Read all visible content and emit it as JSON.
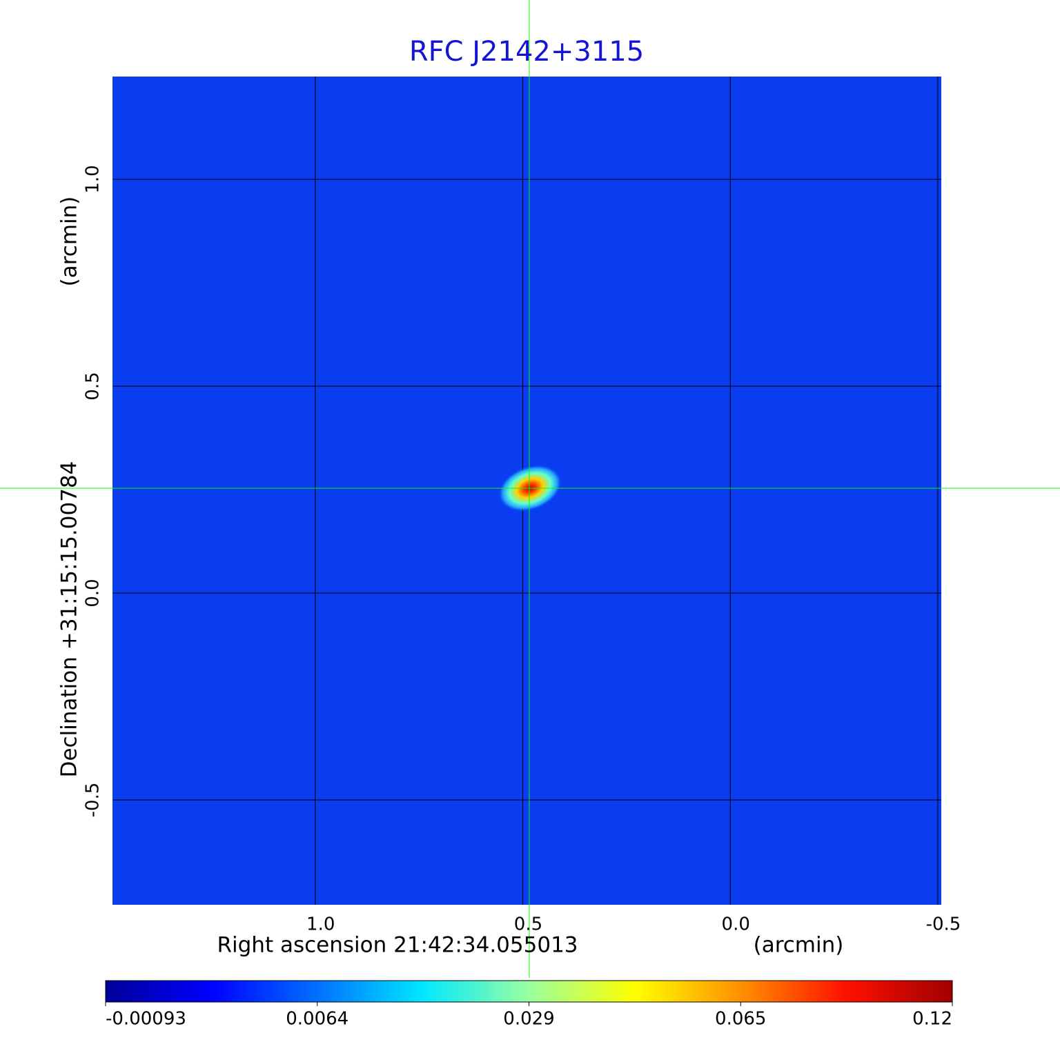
{
  "chart_data": {
    "type": "image",
    "title": "RFC J2142+3115",
    "xlabel": "Right ascension  21:42:34.055013",
    "xunit": "(arcmin)",
    "ylabel": "Declination  +31:15:15.00784",
    "yunit": "(arcmin)",
    "xlim": [
      1.49,
      -0.51
    ],
    "xticks": [
      {
        "value": 1,
        "label": "1.0"
      },
      0.5,
      {
        "value": 0,
        "label": "0.0"
      },
      -0.5
    ],
    "ylim": [
      -0.755,
      1.25
    ],
    "yticks": [
      {
        "value": 1,
        "label": "1.0"
      },
      0.5,
      {
        "value": 0,
        "label": "0.0"
      },
      -0.5
    ],
    "grid": true,
    "background_color": "#0a3cf0",
    "colorbar_ticks": [
      -0.00093,
      0.0064,
      0.029,
      0.065,
      0.12
    ],
    "colormap": [
      "#00009a",
      "#0000ff",
      "#0070ff",
      "#00e8ff",
      "#9affa0",
      "#ffff00",
      "#ff9000",
      "#ff1000",
      "#a00000"
    ]
  }
}
